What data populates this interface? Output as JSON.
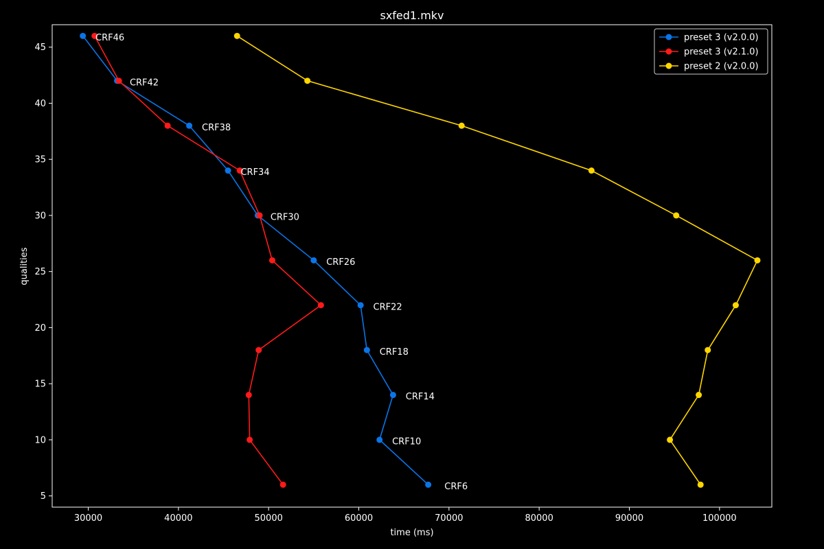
{
  "chart_data": {
    "type": "line",
    "title": "sxfed1.mkv",
    "xlabel": "time (ms)",
    "ylabel": "qualities",
    "xlim": [
      26000,
      105800
    ],
    "ylim": [
      4,
      47
    ],
    "x_ticks": [
      30000,
      40000,
      50000,
      60000,
      70000,
      80000,
      90000,
      100000
    ],
    "y_ticks": [
      5,
      10,
      15,
      20,
      25,
      30,
      35,
      40,
      45
    ],
    "grid": false,
    "legend_position": "top-right",
    "background": "#000000",
    "series": [
      {
        "name": "preset 3 (v2.0.0)",
        "color": "#0a75e8",
        "x": [
          29400,
          33200,
          41200,
          45500,
          48800,
          55000,
          60200,
          60900,
          63800,
          62300,
          67700
        ],
        "y": [
          46,
          42,
          38,
          34,
          30,
          26,
          22,
          18,
          14,
          10,
          6
        ]
      },
      {
        "name": "preset 3 (v2.1.0)",
        "color": "#ff1a1a",
        "x": [
          30700,
          33400,
          38800,
          46800,
          49000,
          50400,
          55800,
          48900,
          47800,
          47900,
          51600
        ],
        "y": [
          46,
          42,
          38,
          34,
          30,
          26,
          22,
          18,
          14,
          10,
          6
        ]
      },
      {
        "name": "preset 2 (v2.0.0)",
        "color": "#ffd600",
        "x": [
          46500,
          54300,
          71400,
          85800,
          95200,
          104200,
          101800,
          98700,
          97700,
          94500,
          97900
        ],
        "y": [
          46,
          42,
          38,
          34,
          30,
          26,
          22,
          18,
          14,
          10,
          6
        ]
      }
    ],
    "annotations": [
      {
        "text": "CRF46",
        "x": 30800,
        "y": 45.9
      },
      {
        "text": "CRF42",
        "x": 34600,
        "y": 41.9
      },
      {
        "text": "CRF38",
        "x": 42600,
        "y": 37.9
      },
      {
        "text": "CRF34",
        "x": 46900,
        "y": 33.9
      },
      {
        "text": "CRF30",
        "x": 50200,
        "y": 29.9
      },
      {
        "text": "CRF26",
        "x": 56400,
        "y": 25.9
      },
      {
        "text": "CRF22",
        "x": 61600,
        "y": 21.9
      },
      {
        "text": "CRF18",
        "x": 62300,
        "y": 17.9
      },
      {
        "text": "CRF14",
        "x": 65200,
        "y": 13.9
      },
      {
        "text": "CRF10",
        "x": 63700,
        "y": 9.9
      },
      {
        "text": "CRF6",
        "x": 69500,
        "y": 5.9
      }
    ]
  }
}
